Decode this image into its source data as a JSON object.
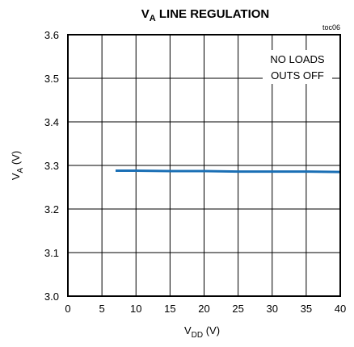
{
  "chart_data": {
    "type": "line",
    "title": {
      "main": "V",
      "sub": "A",
      "rest": " LINE REGULATION"
    },
    "tag": "toc06",
    "xlabel": {
      "main": "V",
      "sub": "DD",
      "rest": " (V)"
    },
    "ylabel": {
      "main": "V",
      "sub": "A",
      "rest": " (V)"
    },
    "xlim": [
      0,
      40
    ],
    "ylim": [
      3.0,
      3.6
    ],
    "xticks": [
      0,
      5,
      10,
      15,
      20,
      25,
      30,
      35,
      40
    ],
    "yticks": [
      3.0,
      3.1,
      3.2,
      3.3,
      3.4,
      3.5,
      3.6
    ],
    "xtick_labels": [
      "0",
      "5",
      "10",
      "15",
      "20",
      "25",
      "30",
      "35",
      "40"
    ],
    "ytick_labels": [
      "3.0",
      "3.1",
      "3.2",
      "3.3",
      "3.4",
      "3.5",
      "3.6"
    ],
    "grid": true,
    "annotation": [
      "NO LOADS",
      "OUTS OFF"
    ],
    "series": [
      {
        "color": "#1a6fb5",
        "x": [
          7,
          10,
          15,
          20,
          25,
          30,
          35,
          40
        ],
        "y": [
          3.288,
          3.288,
          3.287,
          3.287,
          3.286,
          3.286,
          3.286,
          3.285
        ]
      }
    ]
  }
}
